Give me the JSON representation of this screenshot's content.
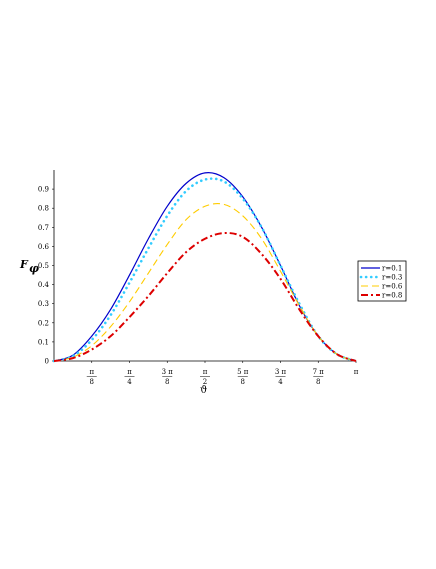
{
  "chart_data": {
    "type": "line",
    "title": "",
    "xlabel": "ϑ",
    "ylabel": "F",
    "ylabel_sub": "φ",
    "xlim": [
      0,
      3.14159
    ],
    "ylim": [
      0,
      1.0
    ],
    "grid": false,
    "legend_position": "right",
    "y_ticks": [
      {
        "value": 0,
        "label": "0"
      },
      {
        "value": 0.1,
        "label": "0.1"
      },
      {
        "value": 0.2,
        "label": "0.2"
      },
      {
        "value": 0.3,
        "label": "0.3"
      },
      {
        "value": 0.4,
        "label": "0.4"
      },
      {
        "value": 0.5,
        "label": "0.5"
      },
      {
        "value": 0.6,
        "label": "0.6"
      },
      {
        "value": 0.7,
        "label": "0.7"
      },
      {
        "value": 0.8,
        "label": "0.8"
      },
      {
        "value": 0.9,
        "label": "0.9"
      }
    ],
    "x_ticks": [
      {
        "value": 0.3927,
        "num": "π",
        "den": "8"
      },
      {
        "value": 0.7854,
        "num": "π",
        "den": "4"
      },
      {
        "value": 1.1781,
        "num": "3 π",
        "den": "8"
      },
      {
        "value": 1.5708,
        "num": "π",
        "den": "2"
      },
      {
        "value": 1.9635,
        "num": "5 π",
        "den": "8"
      },
      {
        "value": 2.3562,
        "num": "3 π",
        "den": "4"
      },
      {
        "value": 2.7489,
        "num": "7 π",
        "den": "8"
      },
      {
        "value": 3.14159,
        "num": "π",
        "den": ""
      }
    ],
    "series": [
      {
        "name": "r=0.1",
        "color": "#0000cc",
        "style": "solid",
        "x": [
          0,
          0.1963,
          0.3927,
          0.589,
          0.7854,
          0.9817,
          1.1781,
          1.3744,
          1.5708,
          1.7671,
          1.9635,
          2.1598,
          2.3562,
          2.5525,
          2.7489,
          2.9452,
          3.14159
        ],
        "y": [
          0,
          0.03,
          0.13,
          0.27,
          0.45,
          0.64,
          0.81,
          0.93,
          0.985,
          0.96,
          0.86,
          0.7,
          0.5,
          0.29,
          0.13,
          0.035,
          0
        ]
      },
      {
        "name": "r=0.3",
        "color": "#33ccff",
        "style": "dotted",
        "x": [
          0,
          0.1963,
          0.3927,
          0.589,
          0.7854,
          0.9817,
          1.1781,
          1.3744,
          1.5708,
          1.7671,
          1.9635,
          2.1598,
          2.3562,
          2.5525,
          2.7489,
          2.9452,
          3.14159
        ],
        "y": [
          0,
          0.025,
          0.11,
          0.24,
          0.41,
          0.59,
          0.76,
          0.89,
          0.95,
          0.94,
          0.85,
          0.7,
          0.5,
          0.3,
          0.13,
          0.035,
          0
        ]
      },
      {
        "name": "r=0.6",
        "color": "#ffcc00",
        "style": "dashed",
        "x": [
          0,
          0.1963,
          0.3927,
          0.589,
          0.7854,
          0.9817,
          1.1781,
          1.3744,
          1.5708,
          1.7671,
          1.9635,
          2.1598,
          2.3562,
          2.5525,
          2.7489,
          2.9452,
          3.14159
        ],
        "y": [
          0,
          0.02,
          0.08,
          0.18,
          0.31,
          0.46,
          0.61,
          0.74,
          0.81,
          0.82,
          0.76,
          0.64,
          0.47,
          0.29,
          0.13,
          0.035,
          0
        ]
      },
      {
        "name": "r=0.8",
        "color": "#dd0000",
        "style": "dashdot",
        "x": [
          0,
          0.1963,
          0.3927,
          0.589,
          0.7854,
          0.9817,
          1.1781,
          1.3744,
          1.5708,
          1.7671,
          1.9635,
          2.1598,
          2.3562,
          2.5525,
          2.7489,
          2.9452,
          3.14159
        ],
        "y": [
          0,
          0.015,
          0.06,
          0.13,
          0.23,
          0.34,
          0.46,
          0.57,
          0.64,
          0.67,
          0.65,
          0.56,
          0.43,
          0.27,
          0.13,
          0.035,
          0
        ]
      }
    ]
  }
}
